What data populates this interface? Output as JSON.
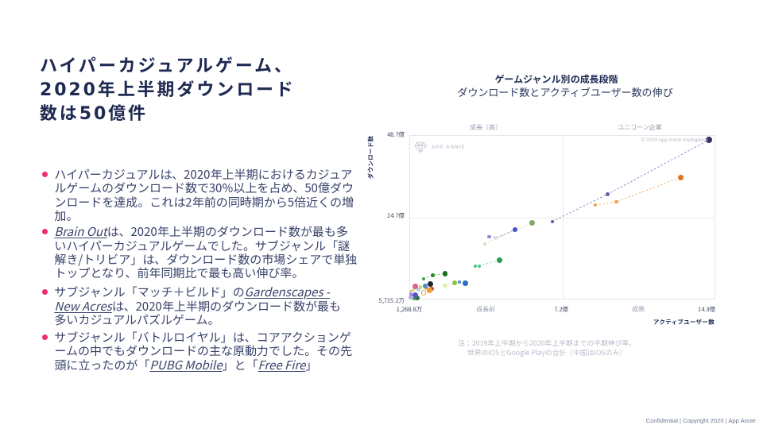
{
  "slide": {
    "title": "ハイパーカジュアルゲーム、\n2020年上半期ダウンロード\n数は50億件",
    "bullets": [
      {
        "segments": [
          {
            "text": "ハイパーカジュアルは、2020年上半期におけるカジュアルゲームのダウンロード数で30%以上を占め、50億ダウンロードを達成。これは2年前の同時期から5倍近くの増加。"
          }
        ]
      },
      {
        "segments": [
          {
            "text": "Brain Out",
            "em": true
          },
          {
            "text": "は、2020年上半期のダウンロード数が最も多いハイパーカジュアルゲームでした。サブジャンル「謎解き/トリビア」は、ダウンロード数の市場シェアで単独トップとなり、前年同期比で最も高い伸び率。"
          }
        ]
      },
      {
        "segments": [
          {
            "text": "サブジャンル「マッチ＋ビルド」の"
          },
          {
            "text": "Gardenscapes - New Acres",
            "em": true
          },
          {
            "text": "は、2020年上半期のダウンロード数が最も多いカジュアルパズルゲーム。"
          }
        ]
      },
      {
        "segments": [
          {
            "text": "サブジャンル「バトルロイヤル」は、コアアクションゲームの中でもダウンロードの主な原動力でした。その先頭に立ったのが「"
          },
          {
            "text": "PUBG Mobile",
            "em": true
          },
          {
            "text": "」と「"
          },
          {
            "text": "Free Fire",
            "em": true
          },
          {
            "text": "」"
          }
        ]
      }
    ],
    "bullet_color": "#ee2f67",
    "title_color": "#1f2a52",
    "body_color": "#39436b",
    "footer": "Confidential  |  Copyright 2020  |  App Annie"
  },
  "chart_data": {
    "type": "scatter",
    "title": "ゲームジャンル別の成長段階",
    "subtitle": "ダウンロード数とアクティブユーザー数の伸び",
    "xlabel": "アクティブユーザー数",
    "ylabel": "ダウンロード数",
    "watermark": "APP ANNIE",
    "copyright": "© 2020 App Annie Intelligence",
    "note_line1": "注：2019年上半期から2020年上半期までの半期伸び率。",
    "note_line2": "世界のiOSとGoogle Playの合計（中国はiOSのみ）",
    "grid": true,
    "legend": false,
    "x_axis": {
      "min": 0.127,
      "max": 14.3,
      "unit": "億",
      "ticks": [
        {
          "label": "1,268.8万",
          "value": 0.127
        },
        {
          "label": "7.2億",
          "value": 7.2
        },
        {
          "label": "14.3億",
          "value": 14.3
        }
      ]
    },
    "y_axis": {
      "min": 0.572,
      "max": 48.7,
      "unit": "億",
      "ticks": [
        {
          "label": "5,715.2万",
          "value": 0.572
        },
        {
          "label": "24.7億",
          "value": 24.7
        },
        {
          "label": "48.7億",
          "value": 48.7
        }
      ]
    },
    "quadrant_labels": {
      "top_left": "成長（高）",
      "top_right": "ユニコーン企業",
      "bottom_left": "成長前",
      "bottom_right": "成熟"
    },
    "series": [
      {
        "name": "cluster",
        "connect": false,
        "points": [
          {
            "x": 0.13,
            "y": 0.9,
            "r": 2.6,
            "c": "#b5a6ee"
          },
          {
            "x": 0.16,
            "y": 1.9,
            "r": 2.3,
            "c": "#9c8ce2"
          },
          {
            "x": 0.16,
            "y": 2.7,
            "r": 2.2,
            "c": "#f2abcc"
          },
          {
            "x": 0.31,
            "y": 0.55,
            "r": 2.3,
            "c": "#41a451"
          },
          {
            "x": 0.27,
            "y": 3.2,
            "r": 2.3,
            "c": "#cfe07c"
          },
          {
            "x": 0.53,
            "y": 3.3,
            "r": 2.6,
            "c": "#a9d4ef"
          },
          {
            "x": 0.9,
            "y": 3.7,
            "r": 2.6,
            "c": "#d3b654"
          },
          {
            "x": 0.76,
            "y": 2.3,
            "r": 3.3,
            "c": "#e89b3c",
            "ring": true
          },
          {
            "x": 0.6,
            "y": 4.0,
            "r": 2.3,
            "c": "#c6d86a"
          },
          {
            "x": 0.46,
            "y": 0.85,
            "r": 3.1,
            "c": "#1d7a30"
          },
          {
            "x": 0.38,
            "y": 1.7,
            "r": 3.6,
            "c": "#5c4fd2"
          },
          {
            "x": 1.12,
            "y": 3.5,
            "r": 2.9,
            "c": "#c64b26"
          },
          {
            "x": 0.83,
            "y": 4.3,
            "r": 2.9,
            "c": "#4f86c6"
          },
          {
            "x": 0.38,
            "y": 4.25,
            "r": 3.6,
            "c": "#dd6090"
          },
          {
            "x": 1.08,
            "y": 5.0,
            "r": 3.6,
            "c": "#23242e"
          },
          {
            "x": 1.05,
            "y": 3.0,
            "r": 3.6,
            "c": "#f09d33"
          }
        ]
      },
      {
        "name": "yellowgreen-trend",
        "connect": true,
        "line_color": "#dcebbe",
        "points": [
          {
            "x": 1.75,
            "y": 4.5,
            "r": 2.8,
            "c": "#dfeeb2"
          },
          {
            "x": 2.19,
            "y": 5.2,
            "r": 3.1,
            "c": "#8cbf40"
          }
        ]
      },
      {
        "name": "blue-trend",
        "connect": true,
        "line_color": "#85b4e4",
        "points": [
          {
            "x": 2.41,
            "y": 5.5,
            "r": 2.0,
            "c": "#3f8edc"
          },
          {
            "x": 2.7,
            "y": 5.2,
            "r": 3.3,
            "c": "#2a72c6"
          }
        ]
      },
      {
        "name": "forest-trend",
        "connect": true,
        "line_color": "#7dbd7d",
        "points": [
          {
            "x": 0.75,
            "y": 6.4,
            "r": 2.2,
            "c": "#44a344"
          },
          {
            "x": 1.19,
            "y": 7.5,
            "r": 2.3,
            "c": "#2e8f2e"
          },
          {
            "x": 1.75,
            "y": 8.0,
            "r": 3.3,
            "c": "#176e17"
          }
        ]
      },
      {
        "name": "mint-trend",
        "connect": true,
        "line_color": "#93d8b2",
        "points": [
          {
            "x": 3.15,
            "y": 10.3,
            "r": 2.1,
            "c": "#4ec289"
          },
          {
            "x": 3.33,
            "y": 10.3,
            "r": 2.1,
            "c": "#4ec289"
          },
          {
            "x": 4.29,
            "y": 12.0,
            "r": 3.3,
            "c": "#2c9e56"
          }
        ]
      },
      {
        "name": "sage-trend",
        "connect": true,
        "line_color": "#cfe5c3",
        "points": [
          {
            "x": 3.59,
            "y": 16.8,
            "r": 2.1,
            "c": "#cbe7ba"
          },
          {
            "x": 5.8,
            "y": 22.9,
            "r": 3.5,
            "c": "#7cab66"
          }
        ]
      },
      {
        "name": "royalblue-trend",
        "connect": true,
        "line_color": "#9fa3c8",
        "points": [
          {
            "x": 3.81,
            "y": 18.9,
            "r": 2.1,
            "c": "#8e86da"
          },
          {
            "x": 4.1,
            "y": 18.5,
            "r": 2.4,
            "c": "#d8daf2"
          },
          {
            "x": 5.02,
            "y": 21.0,
            "r": 3.3,
            "c": "#4353cb"
          }
        ]
      },
      {
        "name": "indigo-trend",
        "connect": true,
        "line_color": "#8f86c6",
        "points": [
          {
            "x": 6.75,
            "y": 23.4,
            "r": 2.2,
            "c": "#6a5aa8"
          },
          {
            "x": 9.33,
            "y": 31.5,
            "r": 2.6,
            "c": "#6a5aa8"
          },
          {
            "x": 14.04,
            "y": 47.5,
            "r": 4.0,
            "c": "#3b2b63"
          }
        ]
      },
      {
        "name": "orange-trend",
        "connect": true,
        "line_color": "#f3b077",
        "points": [
          {
            "x": 8.74,
            "y": 28.2,
            "r": 2.2,
            "c": "#f2a04c"
          },
          {
            "x": 9.73,
            "y": 29.2,
            "r": 2.2,
            "c": "#f2a04c"
          },
          {
            "x": 12.72,
            "y": 36.4,
            "r": 3.8,
            "c": "#e0751c"
          }
        ]
      }
    ]
  }
}
